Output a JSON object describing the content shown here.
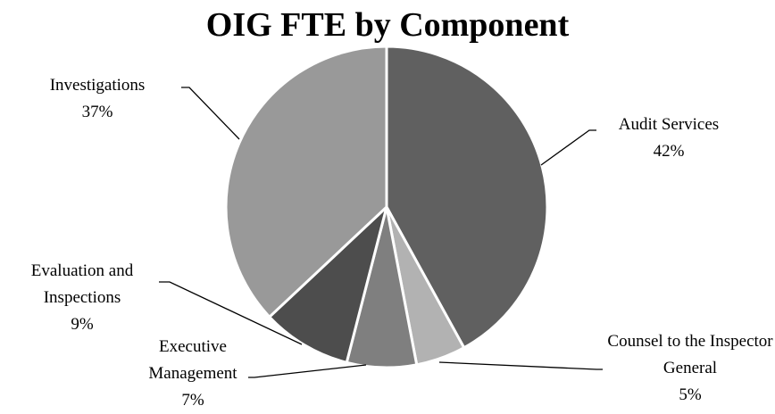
{
  "chart_data": {
    "type": "pie",
    "title": "OIG FTE by Component",
    "categories": [
      "Audit Services",
      "Counsel to the Inspector General",
      "Executive Management",
      "Evaluation and Inspections",
      "Investigations"
    ],
    "values": [
      42,
      5,
      7,
      9,
      37
    ],
    "value_labels": [
      "42%",
      "5%",
      "7%",
      "9%",
      "37%"
    ],
    "colors": [
      "#606060",
      "#b2b2b2",
      "#7f7f7f",
      "#4d4d4d",
      "#999999"
    ]
  }
}
